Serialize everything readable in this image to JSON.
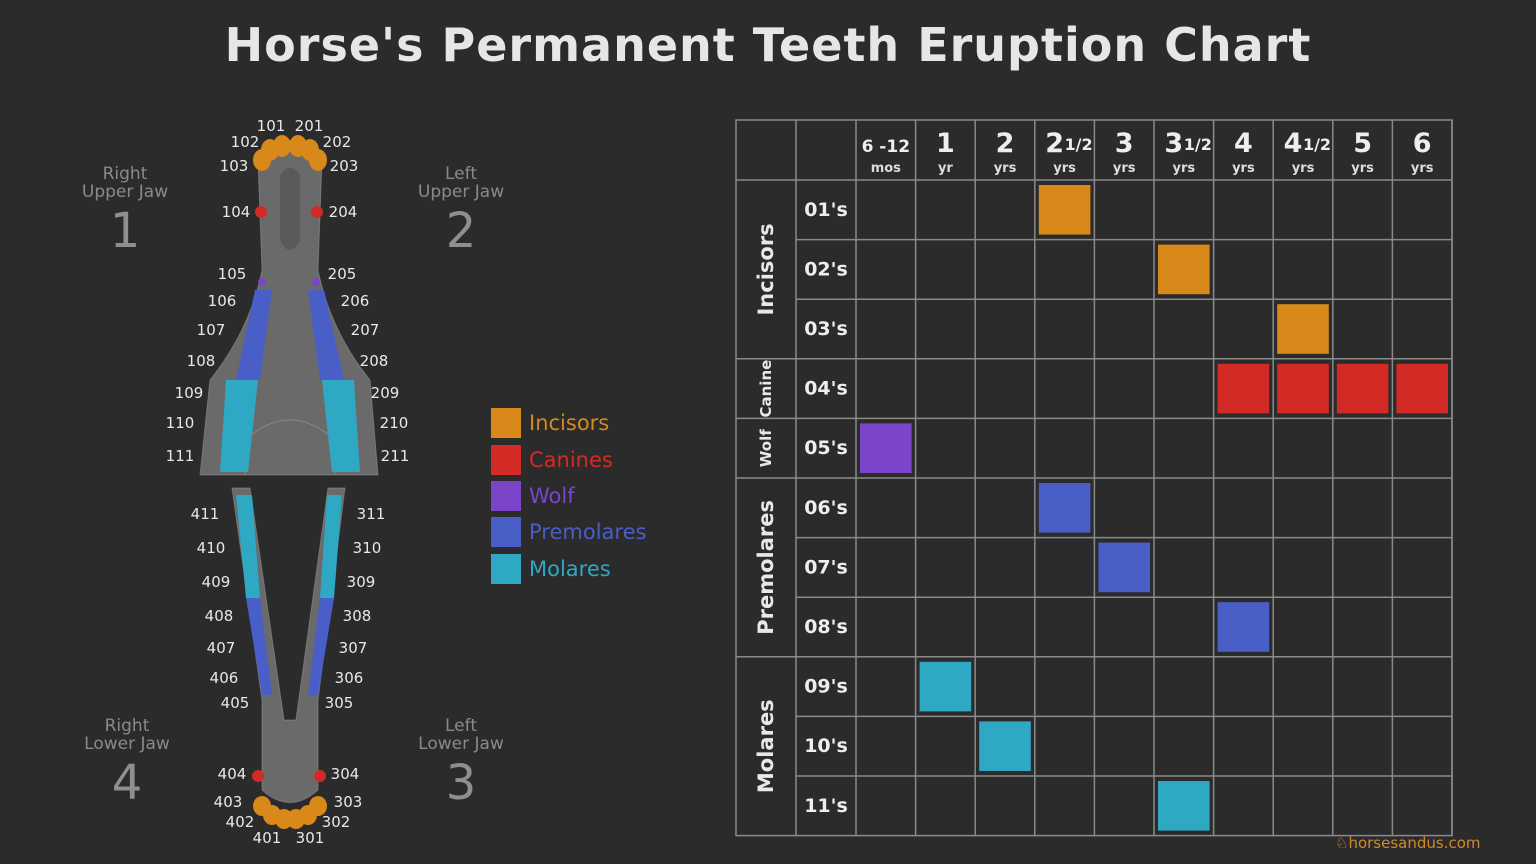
{
  "title": "Horse's Permanent Teeth Eruption Chart",
  "quadrants": [
    {
      "line1": "Right",
      "line2": "Upper Jaw",
      "num": "1"
    },
    {
      "line1": "Left",
      "line2": "Upper Jaw",
      "num": "2"
    },
    {
      "line1": "Right",
      "line2": "Lower Jaw",
      "num": "4"
    },
    {
      "line1": "Left",
      "line2": "Lower Jaw",
      "num": "3"
    }
  ],
  "tooth_labels": [
    "101",
    "201",
    "102",
    "202",
    "103",
    "203",
    "104",
    "204",
    "105",
    "205",
    "106",
    "206",
    "107",
    "207",
    "108",
    "208",
    "109",
    "209",
    "110",
    "210",
    "111",
    "211",
    "411",
    "311",
    "410",
    "310",
    "409",
    "309",
    "408",
    "308",
    "407",
    "307",
    "406",
    "306",
    "405",
    "305",
    "404",
    "304",
    "403",
    "303",
    "402",
    "302",
    "401",
    "301"
  ],
  "legend": [
    {
      "label": "Incisors",
      "color": "#d8891a"
    },
    {
      "label": "Canines",
      "color": "#d22b25"
    },
    {
      "label": "Wolf",
      "color": "#7a45c8"
    },
    {
      "label": "Premolares",
      "color": "#4a5ec8"
    },
    {
      "label": "Molares",
      "color": "#2fa8c4"
    }
  ],
  "brand": "horsesandus.com",
  "chart_data": {
    "type": "table",
    "columns": [
      {
        "top": "6 -12",
        "bottom": "mos"
      },
      {
        "top": "1",
        "bottom": "yr"
      },
      {
        "top": "2",
        "bottom": "yrs"
      },
      {
        "top": "2",
        "frac": "1/2",
        "bottom": "yrs"
      },
      {
        "top": "3",
        "bottom": "yrs"
      },
      {
        "top": "3",
        "frac": "1/2",
        "bottom": "yrs"
      },
      {
        "top": "4",
        "bottom": "yrs"
      },
      {
        "top": "4",
        "frac": "1/2",
        "bottom": "yrs"
      },
      {
        "top": "5",
        "bottom": "yrs"
      },
      {
        "top": "6",
        "bottom": "yrs"
      }
    ],
    "groups": [
      {
        "label": "Incisors",
        "rows": 3,
        "category": "Incisors"
      },
      {
        "label": "Canine",
        "rows": 1,
        "category": "Canines"
      },
      {
        "label": "Wolf",
        "rows": 1,
        "category": "Wolf"
      },
      {
        "label": "Premolares",
        "rows": 3,
        "category": "Premolares"
      },
      {
        "label": "Molares",
        "rows": 3,
        "category": "Molares"
      }
    ],
    "rows": [
      {
        "label": "01's",
        "category": "Incisors",
        "eruption": [
          "2 1/2 yrs"
        ]
      },
      {
        "label": "02's",
        "category": "Incisors",
        "eruption": [
          "3 1/2 yrs"
        ]
      },
      {
        "label": "03's",
        "category": "Incisors",
        "eruption": [
          "4 1/2 yrs"
        ]
      },
      {
        "label": "04's",
        "category": "Canines",
        "eruption": [
          "4 yrs",
          "4 1/2 yrs",
          "5 yrs",
          "6 yrs"
        ]
      },
      {
        "label": "05's",
        "category": "Wolf",
        "eruption": [
          "6 -12 mos"
        ]
      },
      {
        "label": "06's",
        "category": "Premolares",
        "eruption": [
          "2 1/2 yrs"
        ]
      },
      {
        "label": "07's",
        "category": "Premolares",
        "eruption": [
          "3 yrs"
        ]
      },
      {
        "label": "08's",
        "category": "Premolares",
        "eruption": [
          "4 yrs"
        ]
      },
      {
        "label": "09's",
        "category": "Molares",
        "eruption": [
          "1 yr"
        ]
      },
      {
        "label": "10's",
        "category": "Molares",
        "eruption": [
          "2 yrs"
        ]
      },
      {
        "label": "11's",
        "category": "Molares",
        "eruption": [
          "3 1/2 yrs"
        ]
      }
    ],
    "marks": [
      [
        3
      ],
      [
        5
      ],
      [
        7
      ],
      [
        6,
        7,
        8,
        9
      ],
      [
        0
      ],
      [
        3
      ],
      [
        4
      ],
      [
        6
      ],
      [
        1
      ],
      [
        2
      ],
      [
        5
      ]
    ]
  }
}
